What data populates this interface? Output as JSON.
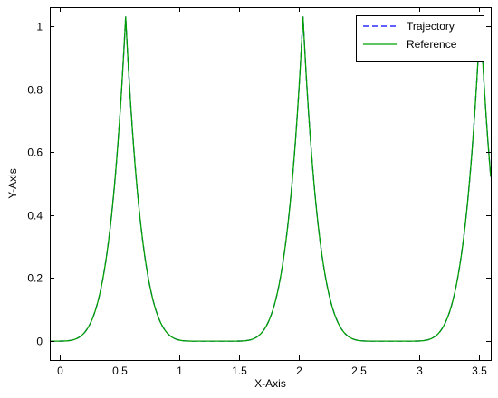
{
  "chart_data": {
    "type": "line",
    "xlabel": "X-Axis",
    "ylabel": "Y-Axis",
    "xlim": [
      -0.08,
      3.6
    ],
    "ylim": [
      -0.06,
      1.06
    ],
    "grid": false,
    "legend_position": "top-right",
    "xticks": [
      0,
      0.5,
      1,
      1.5,
      2,
      2.5,
      3,
      3.5
    ],
    "xtick_labels": [
      "0",
      "0.5",
      "1",
      "1.5",
      "2",
      "2.5",
      "3",
      "3.5"
    ],
    "yticks": [
      0,
      0.2,
      0.4,
      0.6,
      0.8,
      1
    ],
    "ytick_labels": [
      "0",
      "0.2",
      "0.4",
      "0.6",
      "0.8",
      "1"
    ],
    "period": 1.48,
    "peak_x": 0.553,
    "series": [
      {
        "name": "Trajectory",
        "color": "#0000ff",
        "style": "dashed",
        "x": [
          0.0,
          0.1,
          0.2,
          0.3,
          0.4,
          0.45,
          0.5,
          0.53,
          0.553,
          0.58,
          0.62,
          0.7,
          0.8,
          0.9,
          1.0,
          1.1,
          1.2,
          1.3,
          1.4,
          1.5,
          1.6,
          1.7,
          1.8,
          1.9,
          1.95,
          2.0,
          2.02,
          2.033,
          2.06,
          2.1,
          2.2,
          2.3,
          2.4,
          2.5,
          2.6,
          2.7,
          2.8,
          2.9,
          3.0,
          3.1,
          3.2,
          3.3,
          3.4,
          3.45,
          3.5,
          3.513,
          3.55,
          3.6
        ],
        "y": [
          0.0,
          0.02,
          0.07,
          0.17,
          0.37,
          0.55,
          0.8,
          0.93,
          1.03,
          0.78,
          0.55,
          0.3,
          0.12,
          0.05,
          0.02,
          0.005,
          0.0,
          0.0,
          0.0,
          0.005,
          0.02,
          0.05,
          0.12,
          0.3,
          0.43,
          0.66,
          0.87,
          1.03,
          0.78,
          0.55,
          0.3,
          0.12,
          0.05,
          0.02,
          0.005,
          0.0,
          0.0,
          0.0,
          0.005,
          0.02,
          0.05,
          0.12,
          0.3,
          0.43,
          0.7,
          1.0,
          0.75,
          0.46
        ]
      },
      {
        "name": "Reference",
        "color": "#00a000",
        "style": "solid",
        "x": [
          0.0,
          0.1,
          0.2,
          0.3,
          0.4,
          0.45,
          0.5,
          0.53,
          0.553,
          0.58,
          0.62,
          0.7,
          0.8,
          0.9,
          1.0,
          1.1,
          1.2,
          1.3,
          1.4,
          1.5,
          1.6,
          1.7,
          1.8,
          1.9,
          1.95,
          2.0,
          2.02,
          2.033,
          2.06,
          2.1,
          2.2,
          2.3,
          2.4,
          2.5,
          2.6,
          2.7,
          2.8,
          2.9,
          3.0,
          3.1,
          3.2,
          3.3,
          3.4,
          3.45,
          3.5,
          3.513,
          3.55,
          3.6
        ],
        "y": [
          0.0,
          0.02,
          0.07,
          0.17,
          0.37,
          0.55,
          0.8,
          0.93,
          1.03,
          0.78,
          0.55,
          0.3,
          0.12,
          0.05,
          0.02,
          0.005,
          0.0,
          0.0,
          0.0,
          0.005,
          0.02,
          0.05,
          0.12,
          0.3,
          0.43,
          0.66,
          0.87,
          1.03,
          0.78,
          0.55,
          0.3,
          0.12,
          0.05,
          0.02,
          0.005,
          0.0,
          0.0,
          0.0,
          0.005,
          0.02,
          0.05,
          0.12,
          0.3,
          0.43,
          0.7,
          1.0,
          0.75,
          0.46
        ]
      }
    ]
  }
}
